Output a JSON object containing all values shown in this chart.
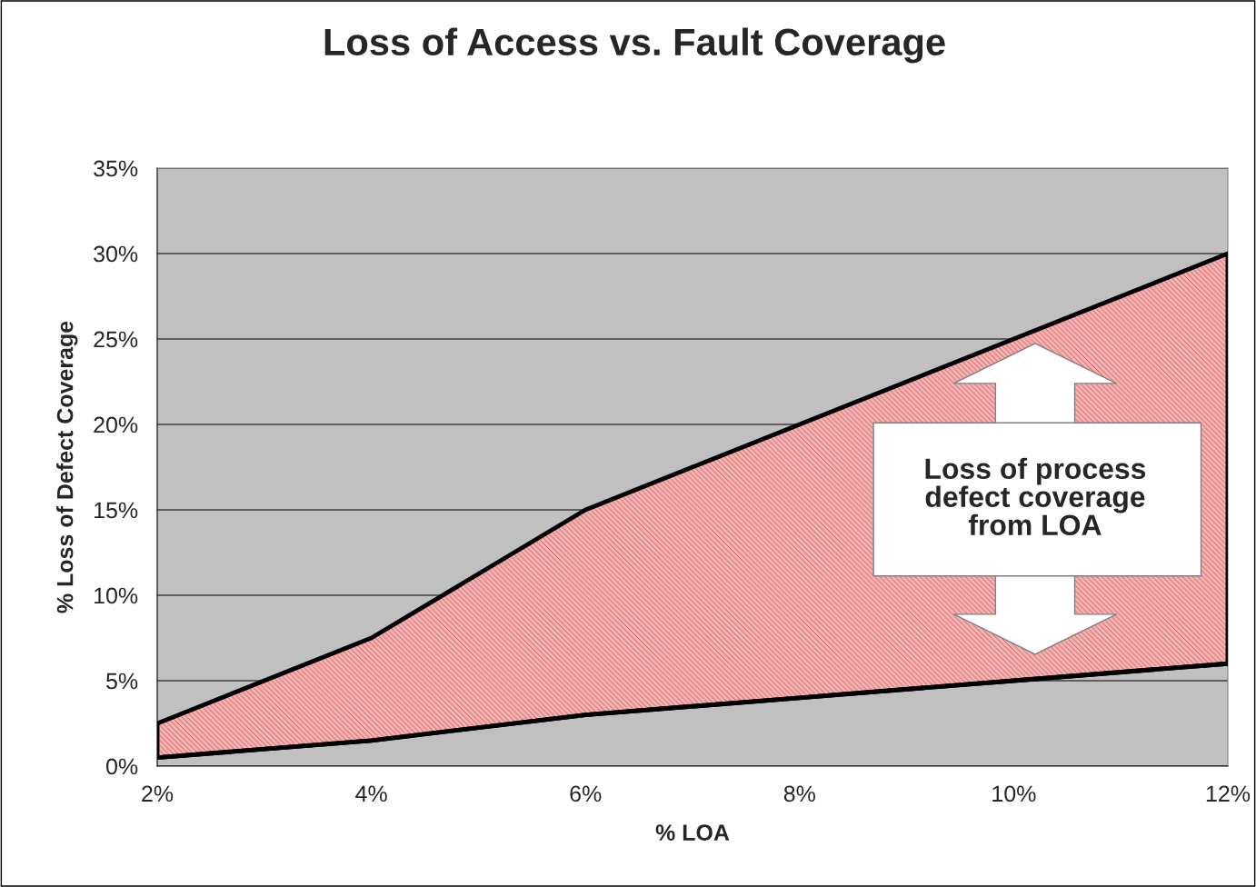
{
  "chart_data": {
    "type": "line",
    "title": "Loss of Access vs. Fault Coverage",
    "xlabel": "% LOA",
    "ylabel": "% Loss of Defect Coverage",
    "categories": [
      "2%",
      "4%",
      "6%",
      "8%",
      "10%",
      "12%"
    ],
    "series": [
      {
        "color": "#000000",
        "values": [
          0.5,
          1.5,
          3,
          4,
          5,
          6
        ],
        "lower": [
          0.5,
          1.5,
          3,
          4,
          5,
          6
        ],
        "upper": [
          2.5,
          7.5,
          15,
          20,
          25,
          30
        ]
      }
    ],
    "ylim": [
      0,
      35
    ],
    "yticks": [
      {
        "value": 0,
        "label": "0%"
      },
      {
        "value": 5,
        "label": "5%"
      },
      {
        "value": 10,
        "label": "10%"
      },
      {
        "value": 15,
        "label": "15%"
      },
      {
        "value": 20,
        "label": "20%"
      },
      {
        "value": 25,
        "label": "25%"
      },
      {
        "value": 30,
        "label": "30%"
      },
      {
        "value": 35,
        "label": "35%"
      }
    ],
    "grid": "y",
    "legend": false,
    "annotations": [
      "Loss of process\ndefect coverage\nfrom LOA"
    ]
  }
}
